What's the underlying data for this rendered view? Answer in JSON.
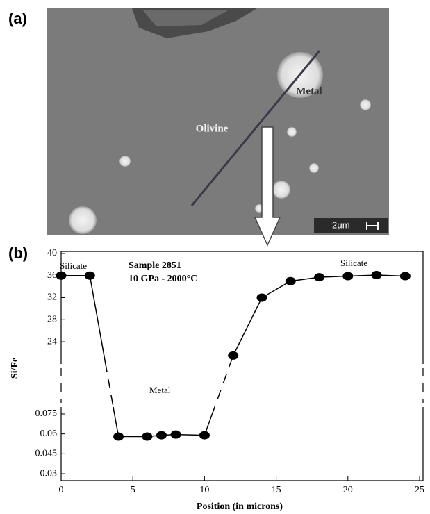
{
  "panel_a": {
    "label": "(a)",
    "annotations": [
      "Metal",
      "Olivine"
    ],
    "scale_bar": "2μm"
  },
  "chart_data": {
    "type": "line",
    "panel_label": "(b)",
    "title": "Sample 2851",
    "subtitle": "10 GPa - 2000°C",
    "annotations": [
      "Silicate",
      "Silicate",
      "Metal"
    ],
    "x_label": "Position (in microns)",
    "y_label": "Si/Fe",
    "x": [
      0,
      2,
      4,
      6,
      7,
      8,
      10,
      12,
      14,
      16,
      18,
      20,
      22,
      24
    ],
    "values": [
      36,
      36,
      0.058,
      0.058,
      0.059,
      0.0595,
      0.059,
      21.5,
      32,
      35,
      35.7,
      35.9,
      36.1,
      35.9
    ],
    "color": "#000000",
    "xlim": [
      0,
      25
    ],
    "xticks": [
      0,
      5,
      10,
      15,
      20,
      25
    ],
    "y_segments": [
      {
        "ylim": [
          0.025,
          0.08
        ],
        "yticks": [
          0.03,
          0.045,
          0.06,
          0.075
        ]
      },
      {
        "ylim": [
          20,
          40
        ],
        "yticks": [
          24,
          28,
          32,
          36,
          40
        ]
      }
    ]
  }
}
